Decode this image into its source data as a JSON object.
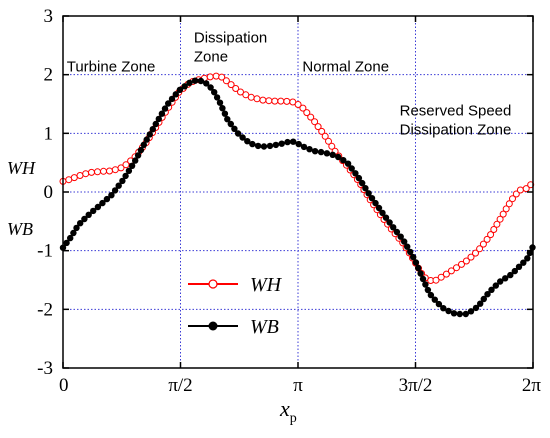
{
  "chart_data": {
    "type": "line",
    "title": "",
    "xlabel": "x",
    "xlabel_sub": "p",
    "ylabel_top": "WH",
    "ylabel_bottom": "WB",
    "xlim": [
      0,
      6.2832
    ],
    "ylim": [
      -3,
      3
    ],
    "grid": true,
    "x_ticks": [
      {
        "value": 0,
        "label": "0"
      },
      {
        "value": 1.5708,
        "label": "π/2"
      },
      {
        "value": 3.1416,
        "label": "π"
      },
      {
        "value": 4.7124,
        "label": "3π/2"
      },
      {
        "value": 6.2832,
        "label": "2π"
      }
    ],
    "y_ticks": [
      {
        "value": 3,
        "label": "3"
      },
      {
        "value": 2,
        "label": "2"
      },
      {
        "value": 1,
        "label": "1"
      },
      {
        "value": 0,
        "label": "0"
      },
      {
        "value": -1,
        "label": "-1"
      },
      {
        "value": -2,
        "label": "-2"
      },
      {
        "value": -3,
        "label": "-3"
      }
    ],
    "annotations": [
      {
        "lines": [
          "Turbine Zone"
        ],
        "x": 0.05,
        "y": 2.05
      },
      {
        "lines": [
          "Dissipation",
          "Zone"
        ],
        "x": 1.75,
        "y": 2.55
      },
      {
        "lines": [
          "Normal Zone"
        ],
        "x": 3.2,
        "y": 2.05
      },
      {
        "lines": [
          "Reserved Speed",
          "Dissipation Zone"
        ],
        "x": 4.5,
        "y": 1.3
      }
    ],
    "legend_position": "lower-center",
    "series": [
      {
        "name": "WH",
        "color": "#ff0000",
        "marker": "open-circle",
        "points": [
          [
            0.0,
            0.18
          ],
          [
            0.08,
            0.21
          ],
          [
            0.2,
            0.27
          ],
          [
            0.35,
            0.33
          ],
          [
            0.5,
            0.35
          ],
          [
            0.65,
            0.36
          ],
          [
            0.8,
            0.42
          ],
          [
            0.95,
            0.58
          ],
          [
            1.1,
            0.82
          ],
          [
            1.25,
            1.12
          ],
          [
            1.4,
            1.42
          ],
          [
            1.55,
            1.7
          ],
          [
            1.7,
            1.87
          ],
          [
            1.85,
            1.93
          ],
          [
            2.0,
            1.97
          ],
          [
            2.1,
            1.98
          ],
          [
            2.2,
            1.88
          ],
          [
            2.35,
            1.72
          ],
          [
            2.5,
            1.62
          ],
          [
            2.65,
            1.57
          ],
          [
            2.8,
            1.55
          ],
          [
            2.95,
            1.55
          ],
          [
            3.1,
            1.53
          ],
          [
            3.2,
            1.44
          ],
          [
            3.35,
            1.22
          ],
          [
            3.5,
            0.96
          ],
          [
            3.65,
            0.67
          ],
          [
            3.8,
            0.44
          ],
          [
            3.95,
            0.19
          ],
          [
            4.1,
            -0.12
          ],
          [
            4.25,
            -0.4
          ],
          [
            4.4,
            -0.65
          ],
          [
            4.55,
            -0.88
          ],
          [
            4.7,
            -1.18
          ],
          [
            4.82,
            -1.45
          ],
          [
            4.95,
            -1.53
          ],
          [
            5.1,
            -1.42
          ],
          [
            5.25,
            -1.3
          ],
          [
            5.4,
            -1.17
          ],
          [
            5.55,
            -1.0
          ],
          [
            5.7,
            -0.76
          ],
          [
            5.85,
            -0.45
          ],
          [
            6.0,
            -0.13
          ],
          [
            6.1,
            0.03
          ],
          [
            6.2,
            0.06
          ],
          [
            6.2832,
            0.16
          ]
        ]
      },
      {
        "name": "WB",
        "color": "#000000",
        "marker": "filled-circle",
        "points": [
          [
            0.0,
            -0.95
          ],
          [
            0.1,
            -0.78
          ],
          [
            0.2,
            -0.57
          ],
          [
            0.35,
            -0.38
          ],
          [
            0.5,
            -0.22
          ],
          [
            0.65,
            -0.05
          ],
          [
            0.8,
            0.2
          ],
          [
            0.95,
            0.5
          ],
          [
            1.1,
            0.85
          ],
          [
            1.25,
            1.18
          ],
          [
            1.4,
            1.5
          ],
          [
            1.55,
            1.73
          ],
          [
            1.7,
            1.87
          ],
          [
            1.8,
            1.91
          ],
          [
            1.9,
            1.87
          ],
          [
            2.0,
            1.75
          ],
          [
            2.1,
            1.52
          ],
          [
            2.2,
            1.23
          ],
          [
            2.35,
            0.98
          ],
          [
            2.5,
            0.83
          ],
          [
            2.65,
            0.77
          ],
          [
            2.8,
            0.79
          ],
          [
            2.95,
            0.83
          ],
          [
            3.05,
            0.87
          ],
          [
            3.12,
            0.84
          ],
          [
            3.2,
            0.78
          ],
          [
            3.35,
            0.7
          ],
          [
            3.5,
            0.67
          ],
          [
            3.65,
            0.62
          ],
          [
            3.8,
            0.5
          ],
          [
            3.95,
            0.25
          ],
          [
            4.1,
            -0.05
          ],
          [
            4.25,
            -0.32
          ],
          [
            4.4,
            -0.58
          ],
          [
            4.55,
            -0.82
          ],
          [
            4.7,
            -1.15
          ],
          [
            4.8,
            -1.45
          ],
          [
            4.9,
            -1.73
          ],
          [
            5.0,
            -1.88
          ],
          [
            5.1,
            -2.0
          ],
          [
            5.25,
            -2.08
          ],
          [
            5.4,
            -2.08
          ],
          [
            5.55,
            -1.95
          ],
          [
            5.7,
            -1.7
          ],
          [
            5.85,
            -1.52
          ],
          [
            6.0,
            -1.4
          ],
          [
            6.1,
            -1.27
          ],
          [
            6.2,
            -1.15
          ],
          [
            6.2832,
            -0.93
          ]
        ]
      }
    ]
  }
}
